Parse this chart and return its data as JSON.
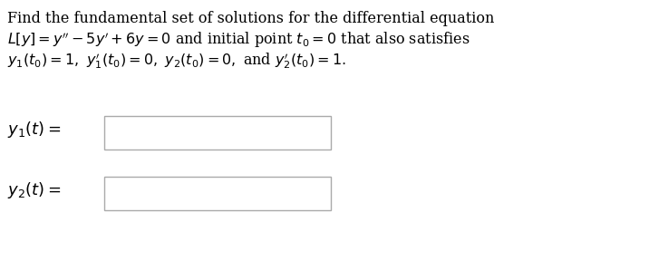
{
  "bg_color": "#ffffff",
  "text_color": "#000000",
  "line1": "Find the fundamental set of solutions for the differential equation",
  "line2": "$L[y] = y'' - 5y' + 6y = 0$ and initial point $t_0 = 0$ that also satisfies",
  "line3": "$y_1(t_0) = 1,\\ y_1'(t_0) = 0,\\ y_2(t_0) = 0,$ and $y_2'(t_0) = 1.$",
  "label1": "$y_1(t) =$",
  "label2": "$y_2(t) =$",
  "font_size_text": 11.5,
  "font_size_label": 13.0,
  "box_edge_color": "#aaaaaa",
  "box_face_color": "#ffffff"
}
